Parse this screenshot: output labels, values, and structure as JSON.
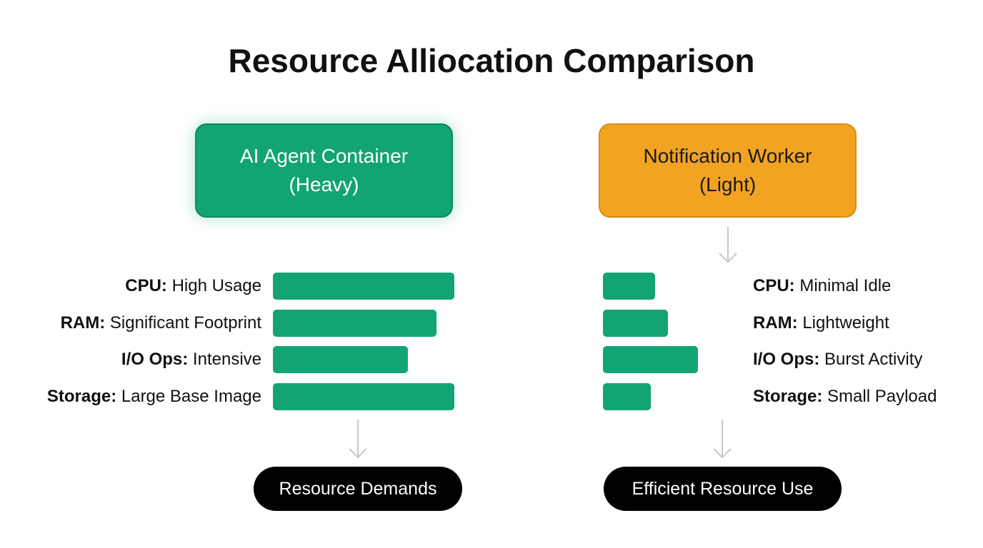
{
  "title": "Resource Alliocation Comparison",
  "panels": [
    {
      "header": [
        "AI Agent Container",
        "(Heavy)"
      ],
      "rows": [
        {
          "key": "CPU:",
          "text": "High Usage"
        },
        {
          "key": "RAM:",
          "text": "Significant Footprint"
        },
        {
          "key": "I/O Ops:",
          "text": "Intensive"
        },
        {
          "key": "Storage:",
          "text": "Large Base Image"
        }
      ],
      "footer": "Resource Demands"
    },
    {
      "header": [
        "Notification Worker",
        "(Light)"
      ],
      "rows": [
        {
          "key": "CPU:",
          "text": "Minimal Idle"
        },
        {
          "key": "RAM:",
          "text": "Lightweight"
        },
        {
          "key": "I/O Ops:",
          "text": "Burst Activity"
        },
        {
          "key": "Storage:",
          "text": "Small Payload"
        }
      ],
      "footer": "Efficient Resource Use"
    }
  ]
}
